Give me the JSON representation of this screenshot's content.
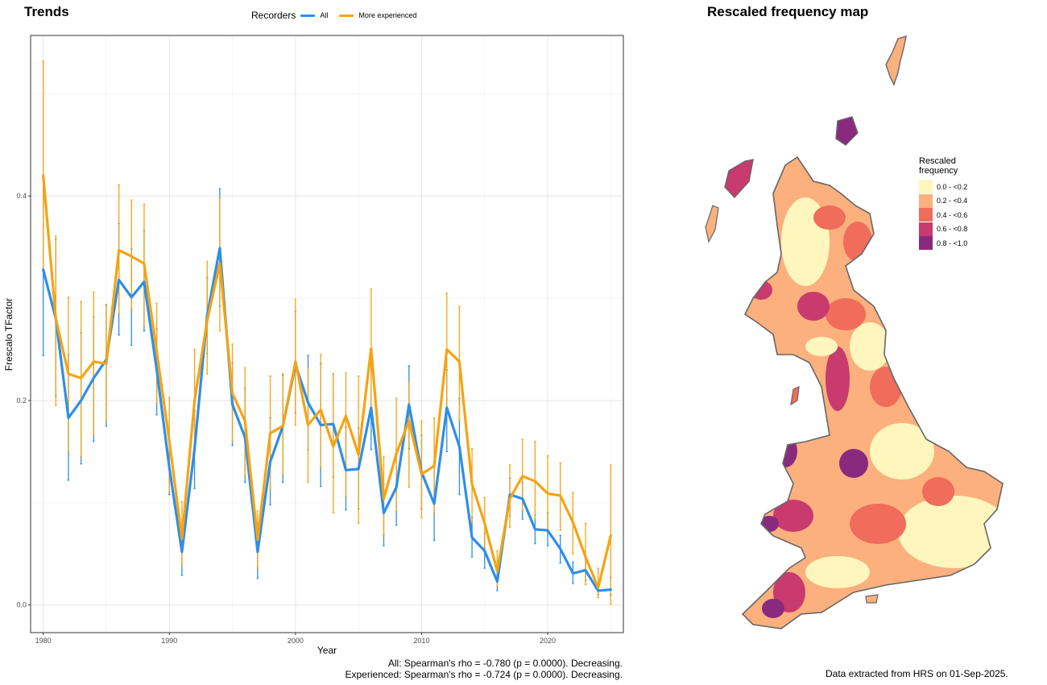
{
  "panels": {
    "trends_title": "Trends",
    "map_title": "Rescaled frequency map"
  },
  "legend": {
    "title": "Recorders",
    "all_label": "All",
    "exp_label": "More experienced",
    "all_color": "#2e8ee8",
    "exp_color": "#f5a313"
  },
  "chart_data": {
    "type": "line",
    "xlabel": "Year",
    "ylabel": "Frescalo TFactor",
    "xlim": [
      1979,
      2026
    ],
    "ylim": [
      -0.027,
      0.557
    ],
    "x_ticks": [
      1980,
      1990,
      2000,
      2010,
      2020
    ],
    "y_ticks": [
      0.0,
      0.2,
      0.4
    ],
    "y_tick_labels": [
      "0.0",
      "0.2",
      "0.4"
    ],
    "grid": true,
    "legend_position": "top",
    "series": [
      {
        "name": "All",
        "color": "#2e8ee8",
        "x": [
          1980,
          1981,
          1982,
          1983,
          1984,
          1985,
          1986,
          1987,
          1988,
          1989,
          1990,
          1991,
          1992,
          1993,
          1994,
          1995,
          1996,
          1997,
          1998,
          1999,
          2000,
          2001,
          2002,
          2003,
          2004,
          2005,
          2006,
          2007,
          2008,
          2009,
          2010,
          2011,
          2012,
          2013,
          2014,
          2015,
          2016,
          2017,
          2018,
          2019,
          2020,
          2021,
          2022,
          2023,
          2024,
          2025
        ],
        "y": [
          0.328,
          0.28,
          0.183,
          0.2,
          0.222,
          0.24,
          0.318,
          0.301,
          0.316,
          0.23,
          0.134,
          0.052,
          0.153,
          0.283,
          0.349,
          0.196,
          0.164,
          0.052,
          0.14,
          0.175,
          0.235,
          0.198,
          0.176,
          0.177,
          0.132,
          0.133,
          0.193,
          0.09,
          0.115,
          0.196,
          0.13,
          0.099,
          0.193,
          0.155,
          0.066,
          0.053,
          0.023,
          0.108,
          0.104,
          0.074,
          0.073,
          0.055,
          0.031,
          0.034,
          0.014,
          0.015
        ],
        "err_lo": [
          0.244,
          0.204,
          0.122,
          0.138,
          0.16,
          0.175,
          0.264,
          0.254,
          0.268,
          0.186,
          0.108,
          0.029,
          0.114,
          0.246,
          0.292,
          0.156,
          0.12,
          0.026,
          0.098,
          0.12,
          0.188,
          0.152,
          0.116,
          0.125,
          0.093,
          0.094,
          0.152,
          0.058,
          0.078,
          0.153,
          0.094,
          0.063,
          0.15,
          0.108,
          0.047,
          0.036,
          0.014,
          0.087,
          0.084,
          0.06,
          0.058,
          0.041,
          0.021,
          0.024,
          0.01,
          0.01
        ],
        "err_hi": [
          0.415,
          0.358,
          0.245,
          0.266,
          0.282,
          0.293,
          0.373,
          0.348,
          0.366,
          0.27,
          0.16,
          0.07,
          0.19,
          0.32,
          0.407,
          0.237,
          0.212,
          0.078,
          0.183,
          0.225,
          0.287,
          0.244,
          0.236,
          0.226,
          0.174,
          0.173,
          0.241,
          0.118,
          0.152,
          0.234,
          0.166,
          0.136,
          0.23,
          0.202,
          0.086,
          0.07,
          0.03,
          0.124,
          0.12,
          0.088,
          0.09,
          0.068,
          0.042,
          0.045,
          0.018,
          0.027
        ]
      },
      {
        "name": "More experienced",
        "color": "#f5a313",
        "x": [
          1980,
          1981,
          1982,
          1983,
          1984,
          1985,
          1986,
          1987,
          1988,
          1989,
          1990,
          1991,
          1992,
          1993,
          1994,
          1995,
          1996,
          1997,
          1998,
          1999,
          2000,
          2001,
          2002,
          2003,
          2004,
          2005,
          2006,
          2007,
          2008,
          2009,
          2010,
          2011,
          2012,
          2013,
          2014,
          2015,
          2016,
          2017,
          2018,
          2019,
          2020,
          2021,
          2022,
          2023,
          2024,
          2025
        ],
        "y": [
          0.42,
          0.28,
          0.226,
          0.222,
          0.238,
          0.236,
          0.347,
          0.341,
          0.334,
          0.248,
          0.16,
          0.065,
          0.2,
          0.278,
          0.334,
          0.207,
          0.18,
          0.064,
          0.168,
          0.175,
          0.238,
          0.176,
          0.191,
          0.155,
          0.185,
          0.147,
          0.251,
          0.104,
          0.148,
          0.18,
          0.128,
          0.136,
          0.25,
          0.238,
          0.118,
          0.08,
          0.033,
          0.104,
          0.126,
          0.121,
          0.109,
          0.107,
          0.081,
          0.047,
          0.017,
          0.068
        ],
        "err_lo": [
          0.326,
          0.195,
          0.15,
          0.145,
          0.166,
          0.18,
          0.285,
          0.289,
          0.272,
          0.197,
          0.11,
          0.038,
          0.15,
          0.226,
          0.268,
          0.16,
          0.126,
          0.036,
          0.113,
          0.128,
          0.176,
          0.12,
          0.134,
          0.09,
          0.106,
          0.08,
          0.188,
          0.068,
          0.092,
          0.115,
          0.085,
          0.09,
          0.193,
          0.18,
          0.08,
          0.056,
          0.018,
          0.076,
          0.092,
          0.084,
          0.071,
          0.073,
          0.05,
          0.02,
          0.007,
          0.001
        ],
        "err_hi": [
          0.532,
          0.361,
          0.301,
          0.297,
          0.306,
          0.294,
          0.411,
          0.396,
          0.392,
          0.295,
          0.203,
          0.101,
          0.25,
          0.336,
          0.398,
          0.255,
          0.232,
          0.092,
          0.224,
          0.226,
          0.299,
          0.232,
          0.245,
          0.226,
          0.227,
          0.224,
          0.309,
          0.145,
          0.202,
          0.218,
          0.18,
          0.183,
          0.305,
          0.292,
          0.153,
          0.105,
          0.053,
          0.137,
          0.162,
          0.16,
          0.146,
          0.139,
          0.11,
          0.08,
          0.036,
          0.137
        ]
      }
    ]
  },
  "footer": {
    "stats_all": "All: Spearman's rho = -0.780 (p = 0.0000). Decreasing.",
    "stats_exp": "Experienced: Spearman's rho = -0.724 (p = 0.0000). Decreasing.",
    "data_note": "Data extracted from HRS on 01-Sep-2025."
  },
  "map_legend": {
    "title_line1": "Rescaled",
    "title_line2": "frequency",
    "classes": [
      {
        "label": "0.0 - <0.2",
        "color": "#fff6bd"
      },
      {
        "label": "0.2 - <0.4",
        "color": "#fbb07e"
      },
      {
        "label": "0.4 - <0.6",
        "color": "#f06c5b"
      },
      {
        "label": "0.6 - <0.8",
        "color": "#c93a6e"
      },
      {
        "label": "0.8 - <1.0",
        "color": "#892a7e"
      }
    ]
  }
}
